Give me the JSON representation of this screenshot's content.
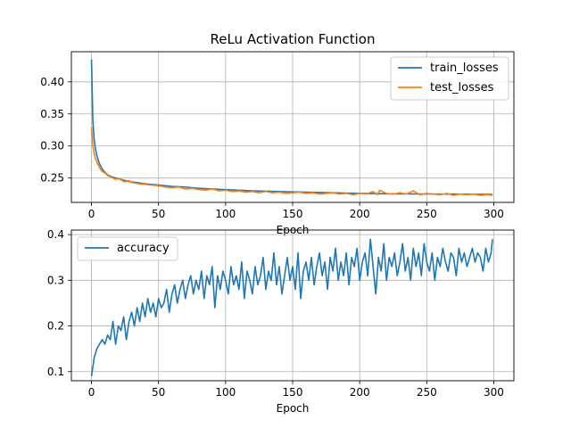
{
  "chart_data": [
    {
      "type": "line",
      "title": "ReLu Activation Function",
      "xlabel": "Epoch",
      "ylabel": "",
      "xlim": [
        -15,
        315
      ],
      "ylim": [
        0.212,
        0.447
      ],
      "xticks": [
        0,
        50,
        100,
        150,
        200,
        250,
        300
      ],
      "yticks": [
        0.25,
        0.3,
        0.35,
        0.4
      ],
      "ytick_labels": [
        "0.25",
        "0.30",
        "0.35",
        "0.40"
      ],
      "grid": true,
      "legend_position": "top-right",
      "series": [
        {
          "name": "train_losses",
          "color": "#1f77b4",
          "x": [
            0,
            1,
            2,
            3,
            4,
            5,
            6,
            8,
            10,
            12,
            15,
            20,
            25,
            30,
            40,
            50,
            60,
            70,
            80,
            90,
            100,
            120,
            140,
            160,
            180,
            200,
            220,
            240,
            260,
            280,
            299
          ],
          "values": [
            0.435,
            0.34,
            0.31,
            0.295,
            0.285,
            0.278,
            0.272,
            0.264,
            0.259,
            0.255,
            0.252,
            0.249,
            0.246,
            0.244,
            0.241,
            0.239,
            0.237,
            0.236,
            0.234,
            0.233,
            0.232,
            0.23,
            0.229,
            0.228,
            0.227,
            0.226,
            0.2255,
            0.2252,
            0.225,
            0.2248,
            0.2245
          ]
        },
        {
          "name": "test_losses",
          "color": "#ff7f0e",
          "x": [
            0,
            1,
            2,
            3,
            4,
            5,
            6,
            8,
            10,
            12,
            15,
            18,
            20,
            25,
            28,
            30,
            35,
            40,
            45,
            50,
            55,
            60,
            65,
            70,
            75,
            80,
            85,
            90,
            95,
            100,
            105,
            110,
            115,
            120,
            125,
            130,
            135,
            140,
            145,
            150,
            155,
            160,
            165,
            170,
            175,
            180,
            185,
            190,
            195,
            200,
            205,
            210,
            213,
            215,
            220,
            225,
            230,
            235,
            240,
            245,
            250,
            255,
            260,
            265,
            270,
            275,
            280,
            285,
            290,
            295,
            299
          ],
          "values": [
            0.33,
            0.3,
            0.288,
            0.28,
            0.275,
            0.27,
            0.266,
            0.26,
            0.258,
            0.254,
            0.251,
            0.248,
            0.249,
            0.244,
            0.246,
            0.243,
            0.241,
            0.24,
            0.239,
            0.238,
            0.236,
            0.235,
            0.236,
            0.233,
            0.234,
            0.232,
            0.231,
            0.233,
            0.23,
            0.231,
            0.229,
            0.23,
            0.228,
            0.229,
            0.227,
            0.229,
            0.227,
            0.228,
            0.226,
            0.227,
            0.228,
            0.226,
            0.227,
            0.225,
            0.226,
            0.227,
            0.225,
            0.226,
            0.224,
            0.226,
            0.225,
            0.229,
            0.224,
            0.231,
            0.226,
            0.225,
            0.227,
            0.225,
            0.23,
            0.224,
            0.226,
            0.225,
            0.224,
            0.226,
            0.223,
            0.225,
            0.224,
            0.225,
            0.223,
            0.224,
            0.223
          ]
        }
      ]
    },
    {
      "type": "line",
      "title": "",
      "xlabel": "Epoch",
      "ylabel": "",
      "xlim": [
        -15,
        315
      ],
      "ylim": [
        0.08,
        0.41
      ],
      "xticks": [
        0,
        50,
        100,
        150,
        200,
        250,
        300
      ],
      "yticks": [
        0.1,
        0.2,
        0.3,
        0.4
      ],
      "ytick_labels": [
        "0.1",
        "0.2",
        "0.3",
        "0.4"
      ],
      "grid": true,
      "legend_position": "top-left",
      "series": [
        {
          "name": "accuracy",
          "color": "#1f77b4",
          "x": [
            0,
            2,
            4,
            6,
            8,
            10,
            12,
            14,
            16,
            18,
            20,
            22,
            24,
            26,
            28,
            30,
            32,
            34,
            36,
            38,
            40,
            42,
            44,
            46,
            48,
            50,
            52,
            54,
            56,
            58,
            60,
            62,
            64,
            66,
            68,
            70,
            72,
            74,
            76,
            78,
            80,
            82,
            84,
            86,
            88,
            90,
            92,
            94,
            96,
            98,
            100,
            102,
            104,
            106,
            108,
            110,
            112,
            114,
            116,
            118,
            120,
            122,
            124,
            126,
            128,
            130,
            132,
            134,
            136,
            138,
            140,
            142,
            144,
            146,
            148,
            150,
            152,
            154,
            156,
            158,
            160,
            162,
            164,
            166,
            168,
            170,
            172,
            174,
            176,
            178,
            180,
            182,
            184,
            186,
            188,
            190,
            192,
            194,
            196,
            198,
            200,
            202,
            204,
            206,
            208,
            210,
            212,
            214,
            216,
            218,
            220,
            222,
            224,
            226,
            228,
            230,
            232,
            234,
            236,
            238,
            240,
            242,
            244,
            246,
            248,
            250,
            252,
            254,
            256,
            258,
            260,
            262,
            264,
            266,
            268,
            270,
            272,
            274,
            276,
            278,
            280,
            282,
            284,
            286,
            288,
            290,
            292,
            294,
            296,
            298,
            299
          ],
          "values": [
            0.09,
            0.13,
            0.15,
            0.16,
            0.17,
            0.16,
            0.18,
            0.17,
            0.21,
            0.16,
            0.2,
            0.19,
            0.22,
            0.17,
            0.21,
            0.23,
            0.2,
            0.24,
            0.21,
            0.25,
            0.22,
            0.26,
            0.23,
            0.25,
            0.22,
            0.26,
            0.24,
            0.25,
            0.28,
            0.23,
            0.27,
            0.29,
            0.25,
            0.28,
            0.3,
            0.26,
            0.29,
            0.31,
            0.27,
            0.3,
            0.28,
            0.32,
            0.26,
            0.31,
            0.29,
            0.33,
            0.24,
            0.31,
            0.28,
            0.32,
            0.3,
            0.27,
            0.33,
            0.29,
            0.31,
            0.28,
            0.34,
            0.26,
            0.32,
            0.3,
            0.27,
            0.33,
            0.29,
            0.31,
            0.35,
            0.28,
            0.32,
            0.3,
            0.36,
            0.29,
            0.33,
            0.27,
            0.31,
            0.35,
            0.3,
            0.33,
            0.28,
            0.36,
            0.26,
            0.32,
            0.34,
            0.3,
            0.35,
            0.29,
            0.33,
            0.36,
            0.31,
            0.34,
            0.28,
            0.35,
            0.32,
            0.37,
            0.3,
            0.34,
            0.31,
            0.36,
            0.29,
            0.35,
            0.33,
            0.37,
            0.3,
            0.34,
            0.36,
            0.31,
            0.39,
            0.33,
            0.27,
            0.35,
            0.32,
            0.38,
            0.3,
            0.35,
            0.33,
            0.36,
            0.31,
            0.34,
            0.38,
            0.32,
            0.35,
            0.3,
            0.37,
            0.33,
            0.36,
            0.31,
            0.38,
            0.34,
            0.32,
            0.36,
            0.3,
            0.35,
            0.33,
            0.37,
            0.34,
            0.32,
            0.36,
            0.35,
            0.31,
            0.37,
            0.34,
            0.36,
            0.33,
            0.35,
            0.37,
            0.34,
            0.36,
            0.35,
            0.32,
            0.37,
            0.34,
            0.36,
            0.39
          ]
        }
      ]
    }
  ]
}
